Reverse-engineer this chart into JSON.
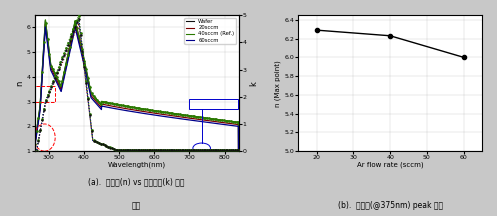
{
  "left_plot": {
    "xlabel": "Wavelength(nm)",
    "ylabel_left": "n",
    "ylabel_right": "k",
    "xlim": [
      260,
      840
    ],
    "ylim_left": [
      1,
      6.5
    ],
    "ylim_right": [
      0,
      5
    ],
    "yticks_left": [
      1,
      2,
      3,
      4,
      5,
      6
    ],
    "yticks_right": [
      0,
      1,
      2,
      3,
      4,
      5
    ],
    "xticks": [
      300,
      400,
      500,
      600,
      700,
      800
    ],
    "legend_labels": [
      "Wafer",
      "20sccm",
      "40sccm (Ref.)",
      "60sccm"
    ],
    "legend_colors": [
      "#111111",
      "#7a0000",
      "#2a7a00",
      "#00008B"
    ],
    "title_line1": "(a).  굴절률(n) vs 소광계수(k) 분석",
    "title_line2": "결과"
  },
  "right_plot": {
    "x": [
      20,
      40,
      60
    ],
    "y": [
      6.29,
      6.23,
      6.0
    ],
    "xlabel": "Ar flow rate (sccm)",
    "ylabel": "n (Max point)",
    "xlim": [
      15,
      65
    ],
    "ylim": [
      5.0,
      6.45
    ],
    "yticks": [
      5.0,
      5.2,
      5.4,
      5.6,
      5.8,
      6.0,
      6.2,
      6.4
    ],
    "xticks": [
      20,
      30,
      40,
      50,
      60
    ],
    "title": "(b).  굴절률(@375nm) peak 변화"
  },
  "background_color": "#c8c8c8",
  "fig_width": 4.97,
  "fig_height": 2.16
}
